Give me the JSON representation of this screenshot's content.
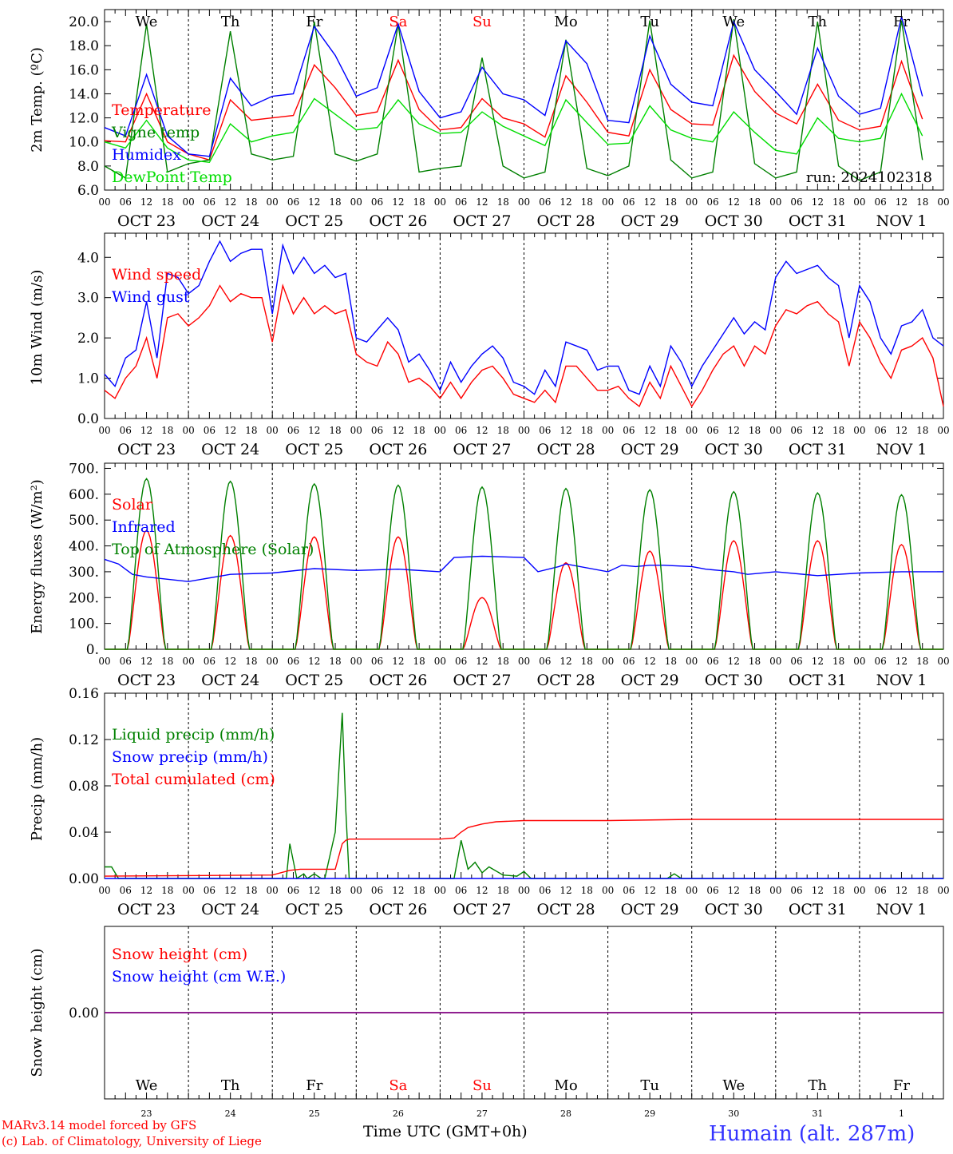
{
  "footer": {
    "model_line1": "MARv3.14 model forced by GFS",
    "model_line2": "(c) Lab. of Climatology, University of Liege",
    "time_label": "Time UTC (GMT+0h)",
    "station": "Humain (alt. 287m)"
  },
  "colors": {
    "red": "#ff0000",
    "blue": "#0000ff",
    "dark_green": "#008000",
    "light_green": "#00dd00",
    "purple": "#800080"
  },
  "axis": {
    "hour_ticks": [
      "00",
      "06",
      "12",
      "18"
    ],
    "final_hour": "00",
    "date_labels": [
      "OCT 23",
      "OCT 24",
      "OCT 25",
      "OCT 26",
      "OCT 27",
      "OCT 28",
      "OCT 29",
      "OCT 30",
      "OCT 31",
      "NOV  1"
    ],
    "weekdays": [
      "We",
      "Th",
      "Fr",
      "Sa",
      "Su",
      "Mo",
      "Tu",
      "We",
      "Th",
      "Fr"
    ],
    "weekday_red": [
      false,
      false,
      false,
      true,
      true,
      false,
      false,
      false,
      false,
      false
    ],
    "day_numbers": [
      "23",
      "24",
      "25",
      "26",
      "27",
      "28",
      "29",
      "30",
      "31",
      "1"
    ]
  },
  "chart_data": [
    {
      "type": "line",
      "id": "temp",
      "ylabel": "2m Temp. (ºC)",
      "ylim": [
        6,
        21
      ],
      "yticks": [
        "20.0",
        "18.0",
        "16.0",
        "14.0",
        "12.0",
        "10.0",
        "8.0",
        "6.0"
      ],
      "ytick_values": [
        20,
        18,
        16,
        14,
        12,
        10,
        8,
        6
      ],
      "annotation": "run: 2024102318",
      "x_hours": [
        0,
        6,
        12,
        18,
        24,
        30,
        36,
        42,
        48,
        54,
        60,
        66,
        72,
        78,
        84,
        90,
        96,
        102,
        108,
        114,
        120,
        126,
        132,
        138,
        144,
        150,
        156,
        162,
        168,
        174,
        180,
        186,
        192,
        198,
        204,
        210,
        216,
        222,
        228,
        234
      ],
      "series": [
        {
          "name": "Temperature",
          "color": "red",
          "values": [
            10.1,
            10.0,
            14.0,
            10.0,
            9.0,
            8.5,
            13.5,
            11.8,
            12.0,
            12.2,
            16.4,
            14.5,
            12.2,
            12.5,
            16.8,
            12.7,
            11.0,
            11.2,
            13.6,
            12.0,
            11.5,
            10.4,
            15.5,
            13.3,
            10.8,
            10.5,
            16.0,
            12.7,
            11.5,
            11.4,
            17.2,
            14.2,
            12.4,
            11.5,
            14.8,
            11.8,
            11.0,
            11.3,
            16.7,
            11.9
          ]
        },
        {
          "name": "Vigne temp",
          "color": "dark_green",
          "values": [
            8.0,
            7.0,
            19.8,
            7.5,
            8.2,
            8.5,
            19.2,
            9.0,
            8.5,
            8.8,
            20.0,
            9.0,
            8.4,
            9.0,
            19.8,
            7.5,
            7.8,
            8.0,
            17.0,
            8.0,
            7.0,
            7.5,
            18.5,
            7.8,
            7.2,
            8.0,
            20.1,
            8.5,
            7.0,
            7.5,
            20.2,
            8.2,
            7.0,
            7.5,
            20.0,
            8.0,
            6.8,
            7.5,
            20.1,
            8.5
          ]
        },
        {
          "name": "Humidex",
          "color": "blue",
          "values": [
            11.2,
            10.5,
            15.6,
            10.5,
            9.0,
            8.8,
            15.3,
            13.0,
            13.8,
            14.0,
            19.6,
            17.2,
            13.8,
            14.5,
            19.8,
            14.2,
            12.0,
            12.5,
            16.2,
            14.0,
            13.5,
            12.2,
            18.4,
            16.5,
            11.8,
            11.6,
            18.8,
            14.8,
            13.3,
            13.0,
            20.0,
            16.0,
            14.2,
            12.3,
            17.8,
            13.8,
            12.3,
            12.8,
            20.4,
            13.8
          ]
        },
        {
          "name": "DewPoint Temp",
          "color": "light_green",
          "values": [
            10.0,
            9.5,
            11.8,
            9.5,
            8.5,
            8.3,
            11.5,
            10.0,
            10.5,
            10.8,
            13.6,
            12.3,
            11.0,
            11.2,
            13.5,
            11.5,
            10.7,
            10.8,
            12.5,
            11.3,
            10.5,
            9.7,
            13.5,
            11.6,
            9.8,
            9.9,
            13.0,
            11.0,
            10.3,
            10.0,
            12.5,
            10.8,
            9.3,
            9.0,
            12.0,
            10.3,
            10.0,
            10.3,
            14.0,
            10.5
          ]
        }
      ]
    },
    {
      "type": "line",
      "id": "wind",
      "ylabel": "10m Wind (m/s)",
      "ylim": [
        0,
        4.6
      ],
      "yticks": [
        "4.0",
        "3.0",
        "2.0",
        "1.0",
        "0.0"
      ],
      "ytick_values": [
        4,
        3,
        2,
        1,
        0
      ],
      "x_hours": [
        0,
        3,
        6,
        9,
        12,
        15,
        18,
        21,
        24,
        27,
        30,
        33,
        36,
        39,
        42,
        45,
        48,
        51,
        54,
        57,
        60,
        63,
        66,
        69,
        72,
        75,
        78,
        81,
        84,
        87,
        90,
        93,
        96,
        99,
        102,
        105,
        108,
        111,
        114,
        117,
        120,
        123,
        126,
        129,
        132,
        135,
        138,
        141,
        144,
        147,
        150,
        153,
        156,
        159,
        162,
        165,
        168,
        171,
        174,
        177,
        180,
        183,
        186,
        189,
        192,
        195,
        198,
        201,
        204,
        207,
        210,
        213,
        216,
        219,
        222,
        225,
        228,
        231,
        234,
        237,
        240
      ],
      "series": [
        {
          "name": "Wind speed",
          "color": "red",
          "values": [
            0.7,
            0.5,
            1.0,
            1.3,
            2.0,
            1.0,
            2.5,
            2.6,
            2.3,
            2.5,
            2.8,
            3.3,
            2.9,
            3.1,
            3.0,
            3.0,
            1.9,
            3.3,
            2.6,
            3.0,
            2.6,
            2.8,
            2.6,
            2.7,
            1.6,
            1.4,
            1.3,
            1.9,
            1.6,
            0.9,
            1.0,
            0.8,
            0.5,
            0.9,
            0.5,
            0.9,
            1.2,
            1.3,
            1.0,
            0.6,
            0.5,
            0.4,
            0.7,
            0.4,
            1.3,
            1.3,
            1.0,
            0.7,
            0.7,
            0.8,
            0.5,
            0.3,
            0.9,
            0.5,
            1.3,
            0.8,
            0.3,
            0.7,
            1.2,
            1.6,
            1.8,
            1.3,
            1.8,
            1.6,
            2.3,
            2.7,
            2.6,
            2.8,
            2.9,
            2.6,
            2.4,
            1.3,
            2.4,
            2.0,
            1.4,
            1.0,
            1.7,
            1.8,
            2.0,
            1.5,
            0.3
          ]
        },
        {
          "name": "Wind gust",
          "color": "blue",
          "values": [
            1.1,
            0.8,
            1.5,
            1.7,
            2.9,
            1.5,
            3.6,
            3.5,
            3.1,
            3.3,
            3.9,
            4.4,
            3.9,
            4.1,
            4.2,
            4.2,
            2.6,
            4.3,
            3.6,
            4.0,
            3.6,
            3.8,
            3.5,
            3.6,
            2.0,
            1.9,
            2.2,
            2.5,
            2.2,
            1.4,
            1.6,
            1.2,
            0.7,
            1.4,
            0.9,
            1.3,
            1.6,
            1.8,
            1.5,
            0.9,
            0.8,
            0.6,
            1.2,
            0.8,
            1.9,
            1.8,
            1.7,
            1.2,
            1.3,
            1.3,
            0.7,
            0.6,
            1.3,
            0.8,
            1.8,
            1.4,
            0.8,
            1.3,
            1.7,
            2.1,
            2.5,
            2.1,
            2.4,
            2.2,
            3.5,
            3.9,
            3.6,
            3.7,
            3.8,
            3.5,
            3.3,
            2.0,
            3.3,
            2.9,
            2.0,
            1.6,
            2.3,
            2.4,
            2.7,
            2.0,
            1.8
          ]
        }
      ]
    },
    {
      "type": "line",
      "id": "energy",
      "ylabel": "Energy fluxes (W/m²)",
      "ylim": [
        0,
        720
      ],
      "yticks": [
        "700.",
        "600.",
        "500.",
        "400.",
        "300.",
        "200.",
        "100.",
        "0."
      ],
      "ytick_values": [
        700,
        600,
        500,
        400,
        300,
        200,
        100,
        0
      ],
      "diurnal_peak_hour": 12,
      "diurnal_halfwidth_hours": 5.5,
      "series": [
        {
          "name": "Solar",
          "color": "red",
          "daily_peaks": [
            460,
            440,
            435,
            435,
            200,
            335,
            380,
            420,
            420,
            405
          ]
        },
        {
          "name": "Infrared",
          "color": "blue",
          "x_hours": [
            0,
            4,
            8,
            12,
            24,
            36,
            48,
            60,
            72,
            84,
            96,
            100,
            108,
            120,
            124,
            130,
            132,
            144,
            148,
            152,
            156,
            160,
            168,
            172,
            176,
            180,
            184,
            192,
            204,
            216,
            228,
            240
          ],
          "values": [
            348,
            330,
            290,
            280,
            262,
            290,
            295,
            312,
            305,
            310,
            300,
            355,
            360,
            355,
            300,
            320,
            330,
            300,
            325,
            320,
            325,
            325,
            320,
            310,
            305,
            300,
            290,
            300,
            285,
            295,
            300,
            300
          ]
        },
        {
          "name": "Top of Atmosphere (Solar)",
          "color": "dark_green",
          "daily_peaks": [
            660,
            650,
            640,
            635,
            628,
            622,
            617,
            610,
            605,
            598
          ]
        }
      ]
    },
    {
      "type": "line",
      "id": "precip",
      "ylabel": "Precip (mm/h)",
      "ylim": [
        0,
        0.16
      ],
      "yticks": [
        "0.16",
        "0.12",
        "0.08",
        "0.04",
        "0.00"
      ],
      "ytick_values": [
        0.16,
        0.12,
        0.08,
        0.04,
        0.0
      ],
      "series": [
        {
          "name": "Liquid precip (mm/h)",
          "color": "dark_green",
          "x_hours": [
            0,
            2,
            4,
            6,
            8,
            48,
            52,
            53,
            55,
            57,
            58,
            60,
            62,
            63,
            66,
            68,
            69,
            70,
            72,
            74,
            96,
            100,
            102,
            104,
            106,
            108,
            110,
            114,
            118,
            120,
            122,
            161,
            163,
            165,
            240
          ],
          "values": [
            0.01,
            0.01,
            0.0,
            0.0,
            0.0,
            0.0,
            0.0,
            0.03,
            0.0,
            0.004,
            0.0,
            0.004,
            0.0,
            0.0,
            0.04,
            0.143,
            0.06,
            0.0,
            0.0,
            0.0,
            0.0,
            0.0,
            0.033,
            0.008,
            0.014,
            0.005,
            0.01,
            0.003,
            0.002,
            0.006,
            0.0,
            0.0,
            0.004,
            0.0,
            0.0
          ]
        },
        {
          "name": "Snow precip (mm/h)",
          "color": "blue",
          "x_hours": [
            0,
            240
          ],
          "values": [
            0,
            0
          ]
        },
        {
          "name": "Total cumulated (cm)",
          "color": "red",
          "x_hours": [
            0,
            48,
            53,
            56,
            66,
            68,
            69,
            70,
            72,
            96,
            100,
            102,
            104,
            108,
            112,
            120,
            144,
            168,
            240
          ],
          "values": [
            0.002,
            0.003,
            0.007,
            0.008,
            0.008,
            0.03,
            0.033,
            0.034,
            0.034,
            0.034,
            0.035,
            0.04,
            0.044,
            0.047,
            0.049,
            0.05,
            0.05,
            0.051,
            0.051
          ]
        }
      ]
    },
    {
      "type": "line",
      "id": "snow",
      "ylabel": "Snow height (cm)",
      "ylim": [
        -1,
        1
      ],
      "yticks": [
        "0.00"
      ],
      "ytick_values": [
        0
      ],
      "series": [
        {
          "name": "Snow height (cm)",
          "color": "red",
          "x_hours": [
            0,
            240
          ],
          "values": [
            0,
            0
          ]
        },
        {
          "name": "Snow height (cm W.E.)",
          "color": "blue",
          "x_hours": [
            0,
            240
          ],
          "values": [
            0,
            0
          ]
        }
      ]
    }
  ]
}
